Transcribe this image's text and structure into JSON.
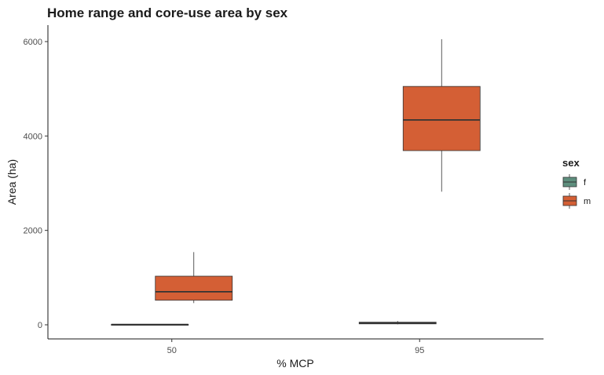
{
  "chart_data": {
    "type": "boxplot",
    "title": "Home range and core-use area by sex",
    "xlabel": "% MCP",
    "ylabel": "Area (ha)",
    "categories": [
      "50",
      "95"
    ],
    "ylim": [
      -300,
      6300
    ],
    "yticks": [
      0,
      2000,
      4000,
      6000
    ],
    "grid": false,
    "legend": {
      "title": "sex",
      "placement": "right",
      "entries": [
        "f",
        "m"
      ]
    },
    "series": [
      {
        "name": "f",
        "color": "#5e8f7e",
        "boxes": [
          {
            "category": "50",
            "min": 0,
            "q1": 0,
            "median": 5,
            "q3": 10,
            "max": 15
          },
          {
            "category": "95",
            "min": 10,
            "q1": 20,
            "median": 35,
            "q3": 55,
            "max": 80
          }
        ]
      },
      {
        "name": "m",
        "color": "#d45f35",
        "boxes": [
          {
            "category": "50",
            "min": 460,
            "q1": 520,
            "median": 700,
            "q3": 1030,
            "max": 1540
          },
          {
            "category": "95",
            "min": 2820,
            "q1": 3690,
            "median": 4340,
            "q3": 5050,
            "max": 6050
          }
        ]
      }
    ]
  }
}
